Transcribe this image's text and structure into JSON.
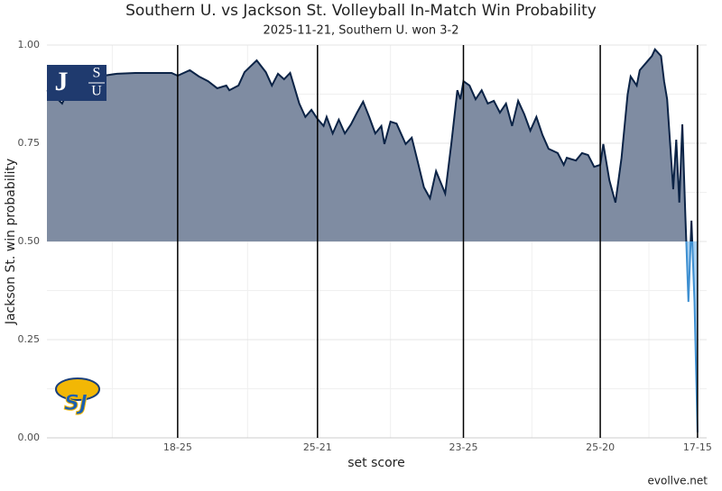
{
  "chart_data": {
    "type": "area_line",
    "title": "Southern U. vs Jackson St. Volleyball In-Match Win Probability",
    "subtitle": "2025-11-21, Southern U. won 3-2",
    "x_label": "set score",
    "y_label": "Jackson St. win probability",
    "caption": "evollve.net",
    "logos": {
      "top": [
        "J",
        "S",
        "U"
      ],
      "bottom": "SJ"
    },
    "x": [
      0,
      2,
      5,
      7,
      10,
      13,
      17,
      23,
      29,
      35,
      41,
      43,
      47,
      50,
      53,
      56,
      59,
      60,
      63,
      65,
      69,
      72,
      74,
      76,
      78,
      80,
      83,
      85,
      87,
      89,
      91,
      92,
      94,
      96,
      98,
      100,
      102,
      104,
      106,
      108,
      110,
      111,
      113,
      115,
      118,
      120,
      122,
      124,
      126,
      128,
      131,
      133,
      135,
      136,
      137,
      139,
      141,
      143,
      145,
      147,
      149,
      151,
      153,
      155,
      157,
      159,
      161,
      163,
      165,
      168,
      170,
      171,
      174,
      176,
      178,
      180,
      182,
      183,
      185,
      187,
      189,
      191,
      192,
      194,
      195,
      197,
      199,
      200,
      202,
      203,
      204,
      206,
      207,
      208,
      209,
      210,
      211,
      212,
      213,
      214
    ],
    "values": [
      0.885,
      0.874,
      0.851,
      0.885,
      0.904,
      0.908,
      0.92,
      0.927,
      0.929,
      0.929,
      0.929,
      0.922,
      0.936,
      0.92,
      0.908,
      0.89,
      0.897,
      0.885,
      0.897,
      0.931,
      0.961,
      0.931,
      0.897,
      0.927,
      0.913,
      0.929,
      0.851,
      0.817,
      0.835,
      0.812,
      0.794,
      0.817,
      0.775,
      0.81,
      0.775,
      0.798,
      0.828,
      0.856,
      0.817,
      0.775,
      0.794,
      0.748,
      0.805,
      0.8,
      0.748,
      0.764,
      0.702,
      0.638,
      0.61,
      0.679,
      0.622,
      0.748,
      0.885,
      0.862,
      0.908,
      0.897,
      0.862,
      0.885,
      0.851,
      0.858,
      0.828,
      0.851,
      0.794,
      0.858,
      0.824,
      0.782,
      0.817,
      0.771,
      0.736,
      0.725,
      0.695,
      0.713,
      0.706,
      0.725,
      0.72,
      0.69,
      0.695,
      0.748,
      0.656,
      0.599,
      0.713,
      0.874,
      0.92,
      0.897,
      0.936,
      0.954,
      0.972,
      0.989,
      0.972,
      0.908,
      0.862,
      0.633,
      0.759,
      0.599,
      0.798,
      0.564,
      0.346,
      0.553,
      0.346,
      0.014
    ],
    "color": "#0b2346",
    "color_below": "#3d8fd1",
    "fill_above": "#7f8ca2",
    "fill_below": "#a8d0f0",
    "fill_baseline": 0.5,
    "xlim": [
      0,
      217
    ],
    "ylim": [
      0,
      1
    ],
    "xticks": [
      {
        "value": 43,
        "label": "18-25"
      },
      {
        "value": 89,
        "label": "25-21"
      },
      {
        "value": 137,
        "label": "23-25"
      },
      {
        "value": 182,
        "label": "25-20"
      },
      {
        "value": 214,
        "label": "17-15"
      }
    ],
    "yticks": [
      {
        "value": 0,
        "label": "0.00"
      },
      {
        "value": 0.25,
        "label": "0.25"
      },
      {
        "value": 0.5,
        "label": "0.50"
      },
      {
        "value": 0.75,
        "label": "0.75"
      },
      {
        "value": 1,
        "label": "1.00"
      }
    ],
    "grid": true
  }
}
